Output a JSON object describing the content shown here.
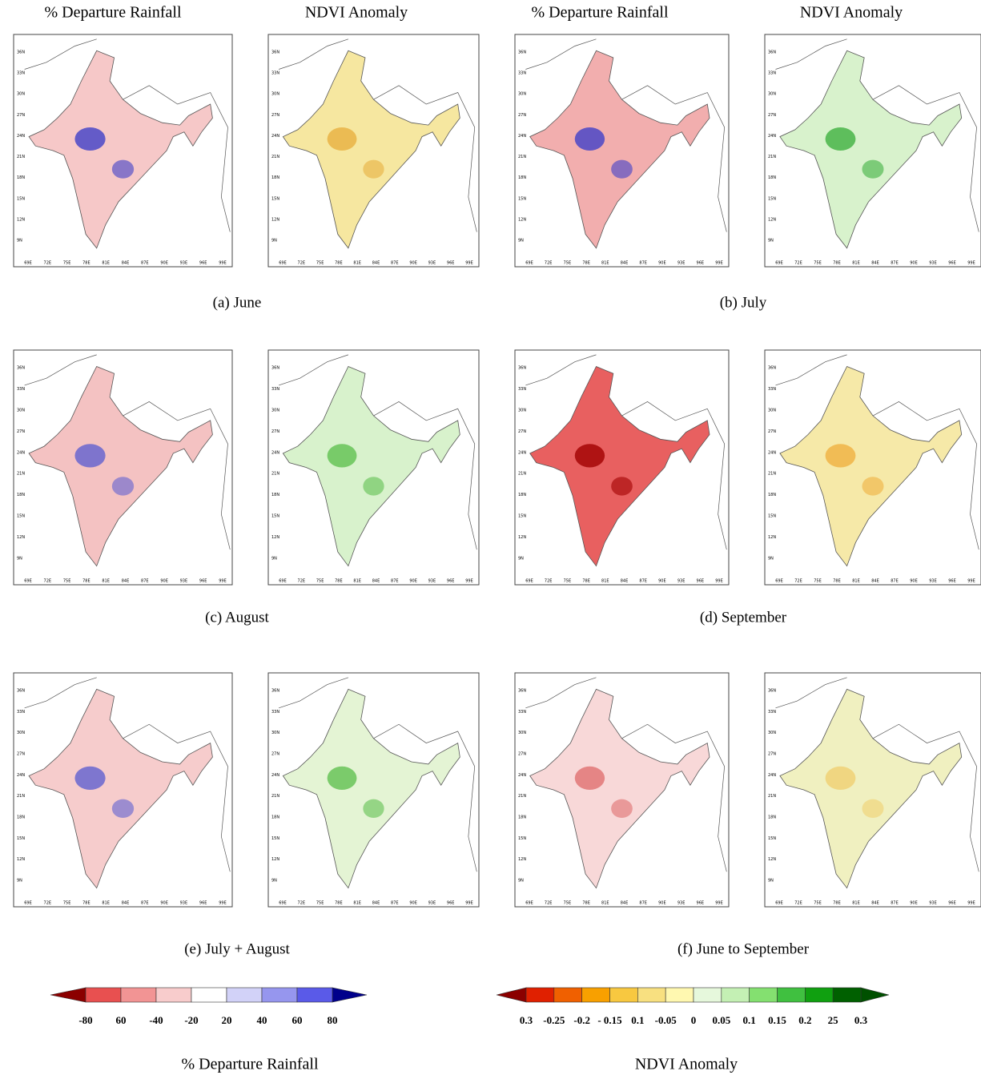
{
  "column_headers": [
    "% Departure Rainfall",
    "NDVI Anomaly",
    "% Departure Rainfall",
    "NDVI Anomaly"
  ],
  "panels": [
    {
      "caption": "(a) June"
    },
    {
      "caption": "(b) July"
    },
    {
      "caption": "(c) August"
    },
    {
      "caption": "(d) September"
    },
    {
      "caption": "(e) July + August"
    },
    {
      "caption": "(f) June to September"
    }
  ],
  "map_axes": {
    "lat_labels": [
      "36N",
      "33N",
      "30N",
      "27N",
      "24N",
      "21N",
      "18N",
      "15N",
      "12N",
      "9N"
    ],
    "lon_labels": [
      "69E",
      "72E",
      "75E",
      "78E",
      "81E",
      "84E",
      "87E",
      "90E",
      "93E",
      "96E",
      "99E"
    ]
  },
  "rainfall_colorbar": {
    "title": "% Departure Rainfall",
    "labels": [
      "-80",
      "60",
      "-40",
      "-20",
      "20",
      "40",
      "60",
      "80"
    ],
    "colors": [
      "#8b0000",
      "#e85050",
      "#f29494",
      "#f8cccc",
      "#ffffff",
      "#d2d2f8",
      "#9696ee",
      "#5a5ae8",
      "#00008b"
    ]
  },
  "ndvi_colorbar": {
    "title": "NDVI Anomaly",
    "labels": [
      "0.3",
      "-0.25",
      "-0.2",
      "- 0.15",
      "0.1",
      "-0.05",
      "0",
      "0.05",
      "0.1",
      "0.15",
      "0.2",
      "25",
      "0.3"
    ],
    "colors": [
      "#8b0000",
      "#e02000",
      "#f06000",
      "#f8a000",
      "#f8c840",
      "#f8e080",
      "#fff8b0",
      "#e6f8dc",
      "#c4f0b4",
      "#84e070",
      "#40c040",
      "#10a010",
      "#006000",
      "#005000"
    ]
  }
}
